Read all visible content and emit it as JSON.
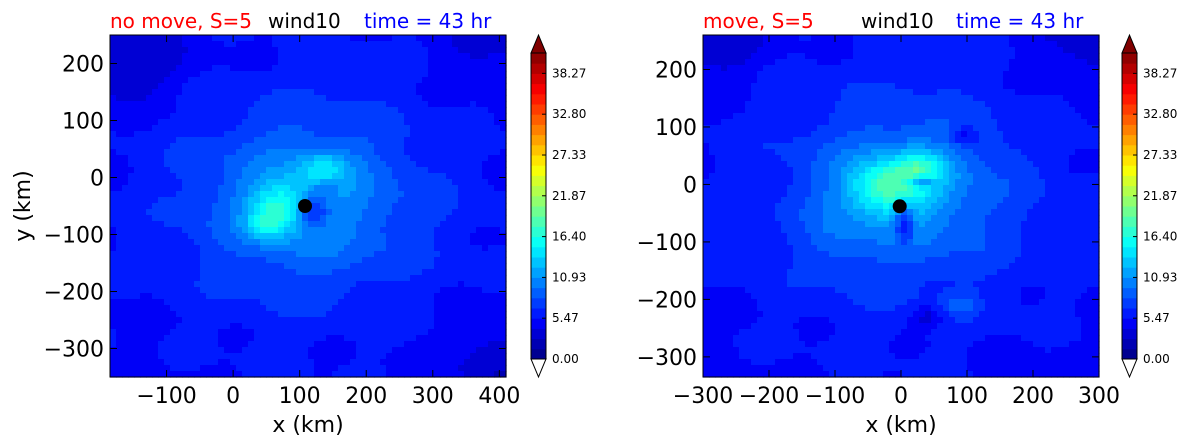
{
  "chart_data": [
    {
      "type": "heatmap",
      "variable": "wind10",
      "title_left": "no move, S=5",
      "title_center": "wind10",
      "title_right": "time = 43 hr",
      "title_left_color": "#ff0000",
      "title_center_color": "#000000",
      "title_right_color": "#0000ff",
      "xlabel": "x (km)",
      "ylabel": "y (km)",
      "xlim": [
        -185,
        410
      ],
      "ylim": [
        -350,
        250
      ],
      "xticks": [
        -100,
        0,
        100,
        200,
        300,
        400
      ],
      "yticks": [
        200,
        100,
        0,
        -100,
        -200,
        -300
      ],
      "center_marker": {
        "x": 108,
        "y": -50
      },
      "field": {
        "background": 5.0,
        "features": [
          {
            "x": 110,
            "y": -45,
            "rx": 230,
            "ry": 210,
            "amp": 3.2
          },
          {
            "x": 110,
            "y": -40,
            "rx": 140,
            "ry": 130,
            "amp": 3.0
          },
          {
            "x": 70,
            "y": -50,
            "rx": 45,
            "ry": 40,
            "amp": 6.0
          },
          {
            "x": 50,
            "y": -85,
            "rx": 32,
            "ry": 28,
            "amp": 4.0
          },
          {
            "x": 135,
            "y": 15,
            "rx": 40,
            "ry": 30,
            "amp": 4.5
          },
          {
            "x": 120,
            "y": -60,
            "rx": 22,
            "ry": 30,
            "amp": -5.5
          },
          {
            "x": 140,
            "y": -15,
            "rx": 18,
            "ry": 14,
            "amp": -2.5
          },
          {
            "x": -160,
            "y": 200,
            "rx": 90,
            "ry": 70,
            "amp": -2.5
          },
          {
            "x": 390,
            "y": -330,
            "rx": 60,
            "ry": 80,
            "amp": -2.0
          },
          {
            "x": 380,
            "y": 230,
            "rx": 60,
            "ry": 50,
            "amp": -1.5
          }
        ]
      }
    },
    {
      "type": "heatmap",
      "variable": "wind10",
      "title_left": "move, S=5",
      "title_center": "wind10",
      "title_right": "time = 43 hr",
      "title_left_color": "#ff0000",
      "title_center_color": "#000000",
      "title_right_color": "#0000ff",
      "xlabel": "x (km)",
      "ylabel": "",
      "xlim": [
        -300,
        300
      ],
      "ylim": [
        -335,
        260
      ],
      "xticks": [
        -300,
        -200,
        -100,
        0,
        100,
        200,
        300
      ],
      "yticks": [
        200,
        100,
        0,
        -100,
        -200,
        -300
      ],
      "center_marker": {
        "x": -2,
        "y": -38
      },
      "field": {
        "background": 5.0,
        "features": [
          {
            "x": 0,
            "y": -20,
            "rx": 240,
            "ry": 220,
            "amp": 3.2
          },
          {
            "x": 10,
            "y": -10,
            "rx": 120,
            "ry": 110,
            "amp": 3.5
          },
          {
            "x": -20,
            "y": -5,
            "rx": 60,
            "ry": 45,
            "amp": 7.5
          },
          {
            "x": 30,
            "y": 30,
            "rx": 40,
            "ry": 30,
            "amp": 5.0
          },
          {
            "x": 5,
            "y": -65,
            "rx": 14,
            "ry": 35,
            "amp": -6.0
          },
          {
            "x": 30,
            "y": 5,
            "rx": 22,
            "ry": 10,
            "amp": -6.0
          },
          {
            "x": 95,
            "y": 85,
            "rx": 20,
            "ry": 15,
            "amp": -3.0
          },
          {
            "x": 40,
            "y": -230,
            "rx": 25,
            "ry": 18,
            "amp": -2.5
          },
          {
            "x": 90,
            "y": -210,
            "rx": 25,
            "ry": 20,
            "amp": 2.5
          },
          {
            "x": -280,
            "y": 240,
            "rx": 70,
            "ry": 60,
            "amp": -2.0
          },
          {
            "x": 280,
            "y": 240,
            "rx": 70,
            "ry": 60,
            "amp": -2.0
          },
          {
            "x": -100,
            "y": -100,
            "rx": 40,
            "ry": 60,
            "amp": 1.2
          }
        ]
      }
    }
  ],
  "colorbar": {
    "ticks": [
      "0.00",
      "5.47",
      "10.93",
      "16.40",
      "21.87",
      "27.33",
      "32.80",
      "38.27"
    ],
    "vmin": 0,
    "vmax": 41.0,
    "levels": 30,
    "extend": "both",
    "colormap": "jet"
  }
}
